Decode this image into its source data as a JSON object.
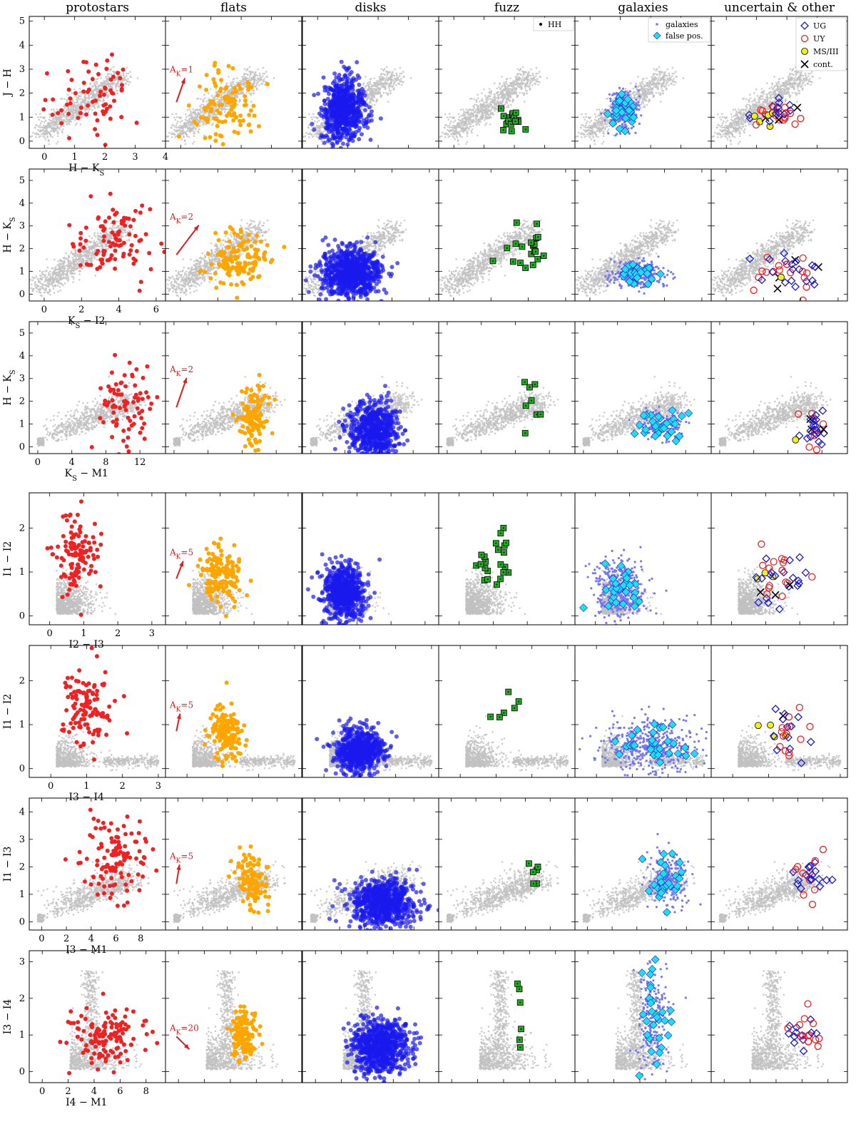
{
  "columns": [
    "protostars",
    "flats",
    "disks",
    "fuzz",
    "galaxies",
    "uncertain & other"
  ],
  "colors": {
    "background": "#c0c0c0",
    "protostars": "#ee2222",
    "flats": "#ffa500",
    "disks": "#1a1aee",
    "fuzz": "#22aa22",
    "galaxies": "#7777ee",
    "false_pos": "#22ddee",
    "UG": "#1a1acc",
    "UY": "#ee2222",
    "MS_III": "#eeee22",
    "cont": "#000000",
    "extinction": "#e41a1c"
  },
  "legends": {
    "fuzz": [
      "HH"
    ],
    "galaxies": [
      "galaxies",
      "false pos."
    ],
    "uncertain": [
      "UG",
      "UY",
      "MS/III",
      "cont."
    ]
  },
  "chart_data": [
    {
      "type": "scatter",
      "xlabel": "H − K",
      "xlabel_sub": "S",
      "ylabel": "J − H",
      "ylabel_sub": "",
      "xlim": [
        -0.5,
        4
      ],
      "ylim": [
        -0.3,
        5.2
      ],
      "xticks": [
        0,
        1,
        2,
        3,
        4
      ],
      "yticks": [
        0,
        1,
        2,
        3,
        4,
        5
      ],
      "extinction": {
        "label": "A",
        "label_sub": "K",
        "label_val": "=1",
        "dx": 0.28,
        "dy": 1.0
      },
      "gray": {
        "type": "diag"
      },
      "clusters": {
        "protostars": {
          "cx": 1.6,
          "cy": 1.8,
          "sx": 0.7,
          "sy": 0.8,
          "n": 70
        },
        "flats": {
          "cx": 1.4,
          "cy": 1.6,
          "sx": 0.55,
          "sy": 0.7,
          "n": 110
        },
        "disks": {
          "cx": 0.85,
          "cy": 1.3,
          "sx": 0.35,
          "sy": 0.6,
          "n": 700
        },
        "fuzz": {
          "cx": 2.0,
          "cy": 0.85,
          "sx": 0.25,
          "sy": 0.25,
          "n": 18
        },
        "galaxies": {
          "cx": 1.1,
          "cy": 1.3,
          "sx": 0.25,
          "sy": 0.4,
          "n": 250
        },
        "uncertain": {
          "cx": 1.6,
          "cy": 1.2,
          "sx": 0.4,
          "sy": 0.35,
          "n": 40
        }
      }
    },
    {
      "type": "scatter",
      "xlabel": "K",
      "xlabel_sub": "S",
      "xlabel_post": " − I2",
      "ylabel": "H − K",
      "ylabel_sub": "S",
      "xlim": [
        -0.8,
        6.5
      ],
      "ylim": [
        -0.3,
        5.5
      ],
      "xticks": [
        0,
        2,
        4,
        6
      ],
      "yticks": [
        0,
        1,
        2,
        3,
        4,
        5
      ],
      "extinction": {
        "label": "A",
        "label_sub": "K",
        "label_val": "=2",
        "dx": 1.2,
        "dy": 1.3
      },
      "gray": {
        "type": "diag"
      },
      "clusters": {
        "protostars": {
          "cx": 3.8,
          "cy": 2.2,
          "sx": 1.1,
          "sy": 0.8,
          "n": 100
        },
        "flats": {
          "cx": 3.0,
          "cy": 1.5,
          "sx": 0.8,
          "sy": 0.6,
          "n": 140
        },
        "disks": {
          "cx": 1.8,
          "cy": 0.9,
          "sx": 0.8,
          "sy": 0.55,
          "n": 800
        },
        "fuzz": {
          "cx": 3.8,
          "cy": 2.0,
          "sx": 0.6,
          "sy": 0.6,
          "n": 20
        },
        "galaxies": {
          "cx": 2.5,
          "cy": 0.9,
          "sx": 0.7,
          "sy": 0.3,
          "n": 300
        },
        "uncertain": {
          "cx": 3.2,
          "cy": 1.0,
          "sx": 1.0,
          "sy": 0.5,
          "n": 40
        }
      }
    },
    {
      "type": "scatter",
      "xlabel": "K",
      "xlabel_sub": "S",
      "xlabel_post": " − M1",
      "ylabel": "H − K",
      "ylabel_sub": "S",
      "xlim": [
        -1,
        15
      ],
      "ylim": [
        -0.3,
        5.5
      ],
      "xticks": [
        0,
        4,
        8,
        12
      ],
      "yticks": [
        0,
        1,
        2,
        3,
        4,
        5
      ],
      "extinction": {
        "label": "A",
        "label_sub": "K",
        "label_val": "=2",
        "dx": 1.2,
        "dy": 1.3
      },
      "gray": {
        "type": "fan"
      },
      "clusters": {
        "protostars": {
          "cx": 10,
          "cy": 1.9,
          "sx": 1.5,
          "sy": 0.9,
          "n": 80
        },
        "flats": {
          "cx": 9.5,
          "cy": 1.2,
          "sx": 0.8,
          "sy": 0.7,
          "n": 110
        },
        "disks": {
          "cx": 7.5,
          "cy": 0.7,
          "sx": 1.5,
          "sy": 0.6,
          "n": 650
        },
        "fuzz": {
          "cx": 10,
          "cy": 2.0,
          "sx": 1.0,
          "sy": 0.8,
          "n": 8
        },
        "galaxies": {
          "cx": 9,
          "cy": 0.9,
          "sx": 1.5,
          "sy": 0.3,
          "n": 140
        },
        "uncertain": {
          "cx": 11,
          "cy": 1.0,
          "sx": 0.9,
          "sy": 0.5,
          "n": 30
        }
      }
    },
    {
      "type": "scatter",
      "xlabel": "I2 − I3",
      "xlabel_sub": "",
      "ylabel": "I1 − I2",
      "ylabel_sub": "",
      "xlim": [
        -0.6,
        3.4
      ],
      "ylim": [
        -0.2,
        2.8
      ],
      "xticks": [
        0,
        1,
        2,
        3
      ],
      "yticks": [
        0,
        1,
        2
      ],
      "extinction": {
        "label": "A",
        "label_sub": "K",
        "label_val": "=5",
        "dx": 0.2,
        "dy": 0.4
      },
      "gray": {
        "type": "blob"
      },
      "clusters": {
        "protostars": {
          "cx": 0.75,
          "cy": 1.4,
          "sx": 0.35,
          "sy": 0.45,
          "n": 120
        },
        "flats": {
          "cx": 1.0,
          "cy": 0.9,
          "sx": 0.3,
          "sy": 0.3,
          "n": 150
        },
        "disks": {
          "cx": 0.6,
          "cy": 0.55,
          "sx": 0.3,
          "sy": 0.3,
          "n": 650
        },
        "fuzz": {
          "cx": 1.0,
          "cy": 1.3,
          "sx": 0.4,
          "sy": 0.4,
          "n": 22
        },
        "galaxies": {
          "cx": 0.7,
          "cy": 0.6,
          "sx": 0.35,
          "sy": 0.35,
          "n": 400
        },
        "uncertain": {
          "cx": 1.2,
          "cy": 0.9,
          "sx": 0.4,
          "sy": 0.35,
          "n": 40
        }
      }
    },
    {
      "type": "scatter",
      "xlabel": "I3 − I4",
      "xlabel_sub": "",
      "ylabel": "I1 − I2",
      "ylabel_sub": "",
      "xlim": [
        -0.6,
        3.2
      ],
      "ylim": [
        -0.2,
        2.8
      ],
      "xticks": [
        0,
        1,
        2,
        3
      ],
      "yticks": [
        0,
        1,
        2
      ],
      "extinction": {
        "label": "A",
        "label_sub": "K",
        "label_val": "=5",
        "dx": 0.1,
        "dy": 0.4
      },
      "gray": {
        "type": "ridge"
      },
      "clusters": {
        "protostars": {
          "cx": 1.0,
          "cy": 1.4,
          "sx": 0.35,
          "sy": 0.5,
          "n": 120
        },
        "flats": {
          "cx": 1.1,
          "cy": 0.8,
          "sx": 0.2,
          "sy": 0.3,
          "n": 150
        },
        "disks": {
          "cx": 1.0,
          "cy": 0.4,
          "sx": 0.35,
          "sy": 0.25,
          "n": 650
        },
        "fuzz": {
          "cx": 1.2,
          "cy": 1.4,
          "sx": 0.3,
          "sy": 0.4,
          "n": 6
        },
        "galaxies": {
          "cx": 1.5,
          "cy": 0.5,
          "sx": 0.7,
          "sy": 0.3,
          "n": 450
        },
        "uncertain": {
          "cx": 1.5,
          "cy": 0.9,
          "sx": 0.4,
          "sy": 0.3,
          "n": 30
        }
      }
    },
    {
      "type": "scatter",
      "xlabel": "I3 − M1",
      "xlabel_sub": "",
      "ylabel": "I1 − I3",
      "ylabel_sub": "",
      "xlim": [
        -1,
        10
      ],
      "ylim": [
        -0.3,
        4.5
      ],
      "xticks": [
        0,
        2,
        4,
        6,
        8
      ],
      "yticks": [
        0,
        1,
        2,
        3,
        4
      ],
      "extinction": {
        "label": "A",
        "label_sub": "K",
        "label_val": "=5",
        "dx": 0.25,
        "dy": 0.7
      },
      "gray": {
        "type": "fan"
      },
      "clusters": {
        "protostars": {
          "cx": 6.0,
          "cy": 2.3,
          "sx": 1.3,
          "sy": 0.8,
          "n": 120
        },
        "flats": {
          "cx": 6.0,
          "cy": 1.5,
          "sx": 0.6,
          "sy": 0.5,
          "n": 120
        },
        "disks": {
          "cx": 5.5,
          "cy": 0.7,
          "sx": 1.3,
          "sy": 0.45,
          "n": 750
        },
        "fuzz": {
          "cx": 6.3,
          "cy": 2.0,
          "sx": 0.5,
          "sy": 0.4,
          "n": 6
        },
        "galaxies": {
          "cx": 6.5,
          "cy": 1.5,
          "sx": 0.8,
          "sy": 0.6,
          "n": 200
        },
        "uncertain": {
          "cx": 7.0,
          "cy": 1.8,
          "sx": 0.9,
          "sy": 0.4,
          "n": 30
        }
      }
    },
    {
      "type": "scatter",
      "xlabel": "I4 − M1",
      "xlabel_sub": "",
      "ylabel": "I3 − I4",
      "ylabel_sub": "",
      "xlim": [
        -1,
        9.5
      ],
      "ylim": [
        -0.3,
        3.3
      ],
      "xticks": [
        0,
        2,
        4,
        6,
        8
      ],
      "yticks": [
        0,
        1,
        2,
        3
      ],
      "extinction": {
        "label": "A",
        "label_sub": "K",
        "label_val": "=20",
        "dx": 1.0,
        "dy": -0.35
      },
      "gray": {
        "type": "vert"
      },
      "clusters": {
        "protostars": {
          "cx": 5.0,
          "cy": 0.95,
          "sx": 1.5,
          "sy": 0.4,
          "n": 130
        },
        "flats": {
          "cx": 5.0,
          "cy": 1.0,
          "sx": 0.5,
          "sy": 0.35,
          "n": 140
        },
        "disks": {
          "cx": 5.0,
          "cy": 0.7,
          "sx": 1.1,
          "sy": 0.35,
          "n": 800
        },
        "fuzz": {
          "cx": 5.3,
          "cy": 1.3,
          "sx": 0.3,
          "sy": 0.7,
          "n": 6
        },
        "galaxies": {
          "cx": 5.0,
          "cy": 1.5,
          "sx": 0.6,
          "sy": 0.8,
          "n": 200
        },
        "uncertain": {
          "cx": 6.2,
          "cy": 1.0,
          "sx": 0.7,
          "sy": 0.25,
          "n": 30
        }
      }
    }
  ]
}
